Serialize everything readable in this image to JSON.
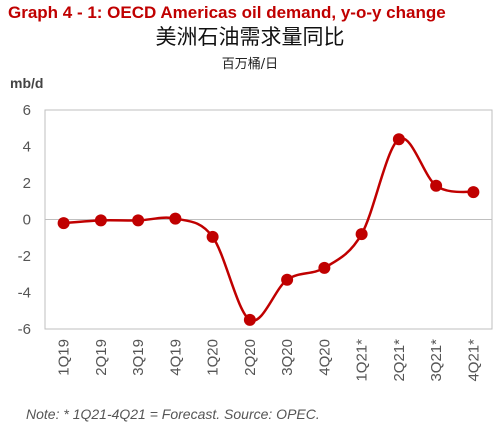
{
  "header": {
    "title": "Graph 4 - 1: OECD Americas oil demand, y-o-y change",
    "cn_title": "美洲石油需求量同比",
    "cn_unit": "百万桶/日"
  },
  "footer": {
    "note": "Note: * 1Q21-4Q21 = Forecast. Source: OPEC."
  },
  "chart_data": {
    "type": "line",
    "title": "Graph 4 - 1: OECD Americas oil demand, y-o-y change",
    "ylabel": "mb/d",
    "xlabel": "",
    "categories": [
      "1Q19",
      "2Q19",
      "3Q19",
      "4Q19",
      "1Q20",
      "2Q20",
      "3Q20",
      "4Q20",
      "1Q21*",
      "2Q21*",
      "3Q21*",
      "4Q21*"
    ],
    "series": [
      {
        "values": [
          -0.2,
          -0.05,
          -0.05,
          0.05,
          -0.95,
          -5.5,
          -3.3,
          -2.65,
          -0.8,
          4.4,
          1.85,
          1.5
        ],
        "color": "#c00000"
      }
    ],
    "ylim": [
      -6,
      6
    ],
    "yticks": [
      -6,
      -4,
      -2,
      0,
      2,
      4,
      6
    ],
    "grid": false,
    "smooth": true,
    "marker": "circle"
  }
}
